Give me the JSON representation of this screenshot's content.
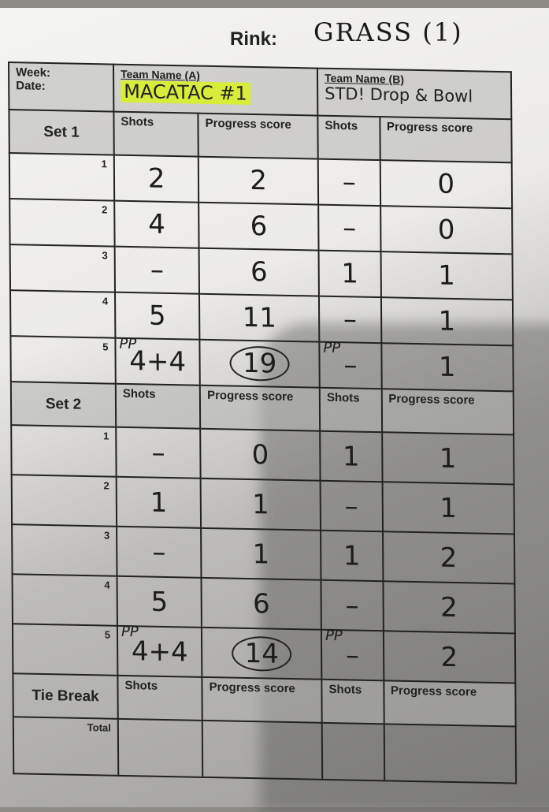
{
  "rink": {
    "label": "Rink:",
    "value": "GRASS (1)"
  },
  "header": {
    "week_label": "Week:",
    "date_label": "Date:",
    "team_a_label": "Team Name (A)",
    "team_a_value": "MACATAC #1",
    "team_b_label": "Team Name (B)",
    "team_b_value": "STD! Drop & Bowl"
  },
  "columns": {
    "shots": "Shots",
    "progress": "Progress score"
  },
  "sets": [
    {
      "label": "Set 1",
      "rows": [
        {
          "end": "1",
          "a_shots": "2",
          "a_prog": "2",
          "b_shots": "–",
          "b_prog": "0"
        },
        {
          "end": "2",
          "a_shots": "4",
          "a_prog": "6",
          "b_shots": "–",
          "b_prog": "0"
        },
        {
          "end": "3",
          "a_shots": "–",
          "a_prog": "6",
          "b_shots": "1",
          "b_prog": "1"
        },
        {
          "end": "4",
          "a_shots": "5",
          "a_prog": "11",
          "b_shots": "–",
          "b_prog": "1"
        },
        {
          "end": "5",
          "a_pp": "PP",
          "a_shots": "4+4",
          "a_prog": "19",
          "b_pp": "PP",
          "b_shots": "–",
          "b_prog": "1"
        }
      ]
    },
    {
      "label": "Set 2",
      "rows": [
        {
          "end": "1",
          "a_shots": "–",
          "a_prog": "0",
          "b_shots": "1",
          "b_prog": "1"
        },
        {
          "end": "2",
          "a_shots": "1",
          "a_prog": "1",
          "b_shots": "–",
          "b_prog": "1"
        },
        {
          "end": "3",
          "a_shots": "–",
          "a_prog": "1",
          "b_shots": "1",
          "b_prog": "2"
        },
        {
          "end": "4",
          "a_shots": "5",
          "a_prog": "6",
          "b_shots": "–",
          "b_prog": "2"
        },
        {
          "end": "5",
          "a_pp": "PP",
          "a_shots": "4+4",
          "a_prog": "14",
          "b_pp": "PP",
          "b_shots": "–",
          "b_prog": "2"
        }
      ]
    }
  ],
  "tie_break": {
    "label": "Tie Break"
  },
  "total": {
    "label": "Total"
  }
}
